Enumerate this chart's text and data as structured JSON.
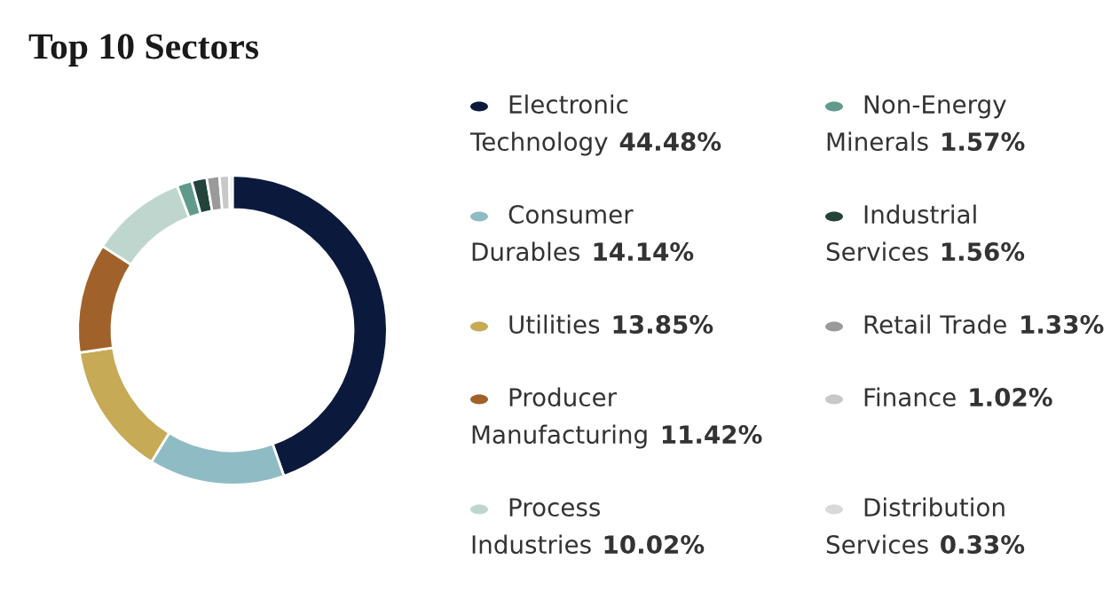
{
  "chart_data": {
    "type": "donut",
    "title": "Top 10 Sectors",
    "categories": [
      "Electronic Technology",
      "Consumer Durables",
      "Utilities",
      "Producer Manufacturing",
      "Process Industries",
      "Non-Energy Minerals",
      "Industrial Services",
      "Retail Trade",
      "Finance",
      "Distribution Services"
    ],
    "values": [
      44.48,
      14.14,
      13.85,
      11.42,
      10.02,
      1.57,
      1.56,
      1.33,
      1.02,
      0.33
    ],
    "value_labels": [
      "44.48%",
      "14.14%",
      "13.85%",
      "11.42%",
      "10.02%",
      "1.57%",
      "1.56%",
      "1.33%",
      "1.02%",
      "0.33%"
    ],
    "colors": [
      "#0b1a3c",
      "#8fbcc4",
      "#c6aa55",
      "#a0622a",
      "#bfd6cf",
      "#5f9a8a",
      "#22423a",
      "#9a9a9a",
      "#c8c8c8",
      "#d8d8d8"
    ],
    "legend": "right"
  }
}
